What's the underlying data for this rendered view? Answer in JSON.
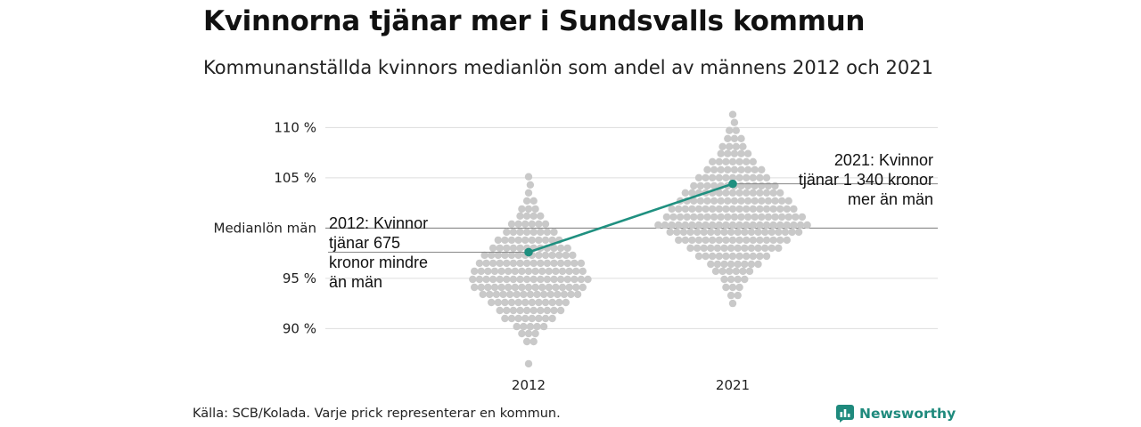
{
  "header": {
    "title": "Kvinnorna tjänar mer i Sundsvalls kommun",
    "subtitle": "Kommunanställda kvinnors medianlön som andel av männens 2012 och 2021"
  },
  "footer": {
    "source": "Källa: SCB/Kolada. Varje prick representerar en kommun.",
    "brand": "Newsworthy"
  },
  "colors": {
    "dots": "#c9c9c9",
    "highlight": "#1f9080",
    "gridline": "#dddddd",
    "reference_line": "#7a7a7a",
    "brand": "#1f8a7d"
  },
  "icons": {
    "brand_logo": "bar-chart-badge-icon"
  },
  "chart_data": {
    "type": "scatter",
    "subtype": "beeswarm",
    "categories": [
      "2012",
      "2021"
    ],
    "ylim": [
      86,
      112
    ],
    "yticks": [
      {
        "value": 110,
        "label": "110 %"
      },
      {
        "value": 105,
        "label": "105 %"
      },
      {
        "value": 100,
        "label": "Medianlön män"
      },
      {
        "value": 95,
        "label": "95 %"
      },
      {
        "value": 90,
        "label": "90 %"
      }
    ],
    "grid": true,
    "reference_line": 100,
    "highlight": {
      "name": "Sundsvall",
      "values": [
        97.6,
        104.4
      ]
    },
    "annotations": [
      {
        "category": "2012",
        "value": 97.6,
        "side": "left",
        "lines": [
          "2012: Kvinnor",
          "tjänar 675",
          "kronor mindre",
          "än män"
        ]
      },
      {
        "category": "2021",
        "value": 104.4,
        "side": "right",
        "lines": [
          "2021: Kvinnor",
          "tjänar 1 340 kronor",
          "mer än män"
        ]
      }
    ],
    "distributions": [
      {
        "category": "2012",
        "rows": [
          [
            105.1,
            1
          ],
          [
            104.3,
            1
          ],
          [
            103.5,
            1
          ],
          [
            102.7,
            2
          ],
          [
            101.9,
            3
          ],
          [
            101.2,
            4
          ],
          [
            100.4,
            6
          ],
          [
            99.6,
            8
          ],
          [
            98.8,
            10
          ],
          [
            98.0,
            12
          ],
          [
            97.3,
            14
          ],
          [
            96.5,
            16
          ],
          [
            95.7,
            17
          ],
          [
            94.9,
            18
          ],
          [
            94.1,
            17
          ],
          [
            93.4,
            15
          ],
          [
            92.6,
            12
          ],
          [
            91.8,
            10
          ],
          [
            91.0,
            8
          ],
          [
            90.2,
            5
          ],
          [
            89.5,
            3
          ],
          [
            88.7,
            2
          ],
          [
            86.5,
            1
          ]
        ]
      },
      {
        "category": "2021",
        "rows": [
          [
            111.3,
            1
          ],
          [
            110.5,
            1
          ],
          [
            109.7,
            2
          ],
          [
            108.9,
            3
          ],
          [
            108.1,
            4
          ],
          [
            107.4,
            5
          ],
          [
            106.6,
            7
          ],
          [
            105.8,
            9
          ],
          [
            105.0,
            11
          ],
          [
            104.2,
            13
          ],
          [
            103.5,
            15
          ],
          [
            102.7,
            17
          ],
          [
            101.9,
            19
          ],
          [
            101.1,
            21
          ],
          [
            100.3,
            23
          ],
          [
            99.6,
            20
          ],
          [
            98.8,
            17
          ],
          [
            98.0,
            14
          ],
          [
            97.2,
            11
          ],
          [
            96.4,
            8
          ],
          [
            95.7,
            6
          ],
          [
            94.9,
            4
          ],
          [
            94.1,
            3
          ],
          [
            93.3,
            2
          ],
          [
            92.5,
            1
          ]
        ]
      }
    ]
  }
}
